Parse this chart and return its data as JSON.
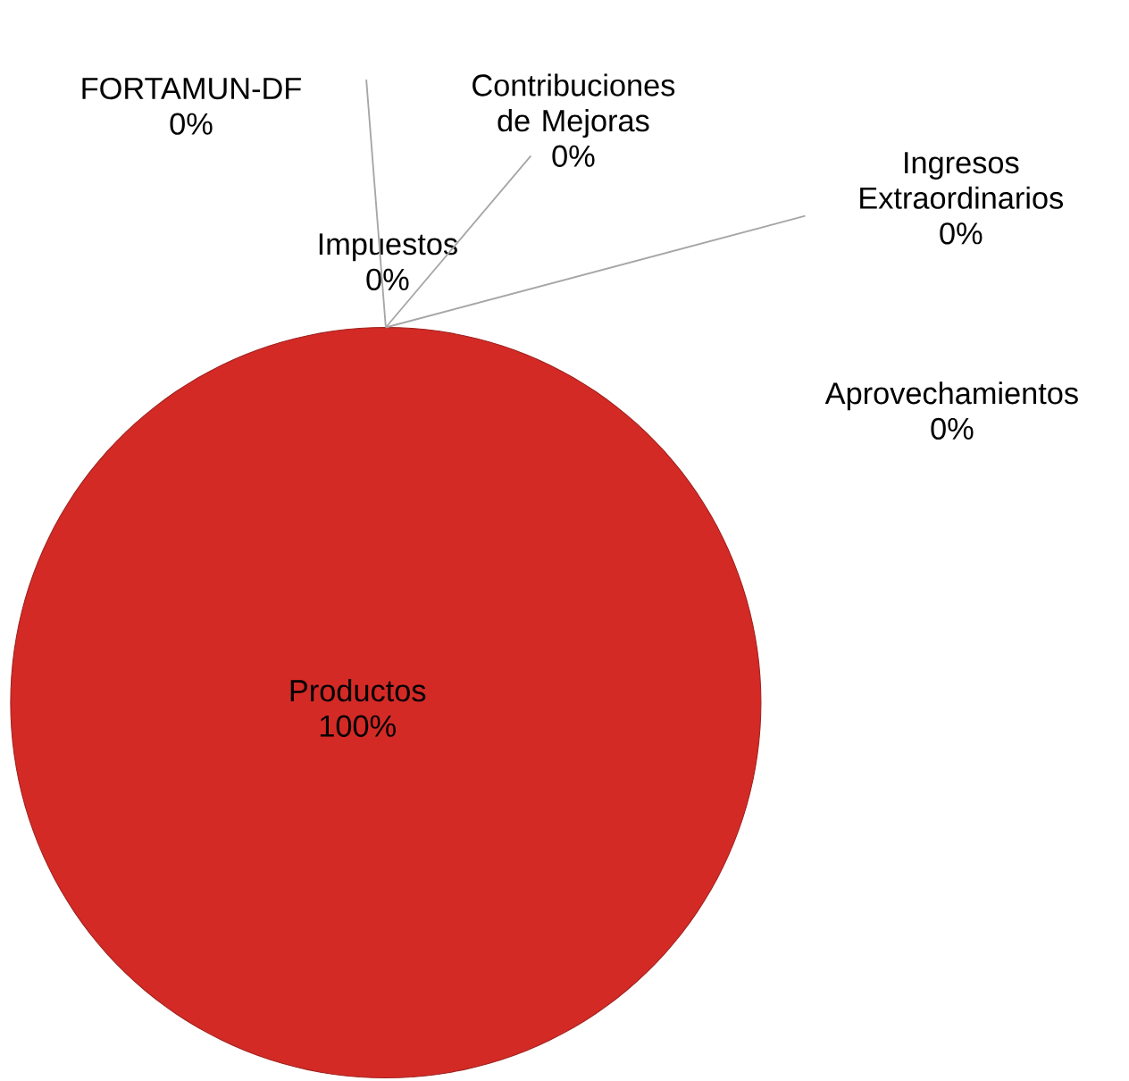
{
  "chart_data": {
    "type": "pie",
    "categories": [
      "Impuestos",
      "Contribuciones de Mejoras",
      "Ingresos Extraordinarios",
      "Aprovechamientos",
      "Productos",
      "FORTAMUN-DF"
    ],
    "values": [
      0,
      0,
      0,
      0,
      100,
      0
    ],
    "value_labels": [
      "0%",
      "0%",
      "0%",
      "0%",
      "100%",
      "0%"
    ],
    "colors": [
      "#4f81bd",
      "#c0504d",
      "#9bbb59",
      "#8064a2",
      "#d42a26",
      "#f79646"
    ]
  }
}
